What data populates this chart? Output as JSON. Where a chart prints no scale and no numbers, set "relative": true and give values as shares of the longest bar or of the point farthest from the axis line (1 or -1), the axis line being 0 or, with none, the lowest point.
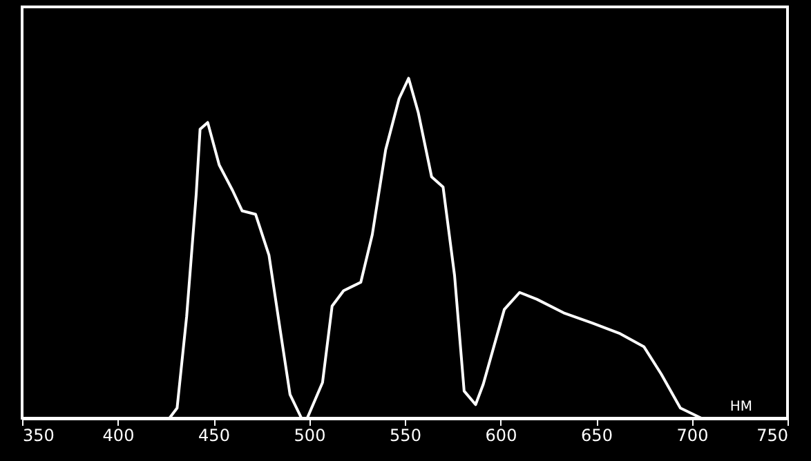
{
  "chart_data": {
    "type": "line",
    "relative": true,
    "xlabel": "НМ",
    "xlim": [
      350,
      750
    ],
    "xticks": [
      350,
      400,
      450,
      500,
      550,
      600,
      650,
      700,
      750
    ],
    "grid": false,
    "marker": "none",
    "line_style": "solid",
    "series": [
      {
        "color": "#ffffff",
        "x": [
          350,
          427,
          431,
          436,
          441,
          443,
          447,
          453,
          460,
          465,
          472,
          479,
          485,
          490,
          496,
          499,
          507,
          512,
          518,
          527,
          533,
          540,
          547,
          552,
          557,
          564,
          570,
          576,
          581,
          587,
          591,
          602,
          610,
          619,
          633,
          648,
          662,
          675,
          684,
          694,
          705,
          739
        ],
        "values": [
          0,
          0,
          0.03,
          0.3,
          0.66,
          0.85,
          0.87,
          0.745,
          0.67,
          0.61,
          0.6,
          0.48,
          0.255,
          0.07,
          0,
          0,
          0.105,
          0.33,
          0.375,
          0.4,
          0.54,
          0.79,
          0.94,
          1.0,
          0.9,
          0.71,
          0.68,
          0.42,
          0.08,
          0.04,
          0.1,
          0.32,
          0.37,
          0.35,
          0.31,
          0.28,
          0.25,
          0.21,
          0.13,
          0.03,
          0,
          0
        ]
      }
    ]
  }
}
